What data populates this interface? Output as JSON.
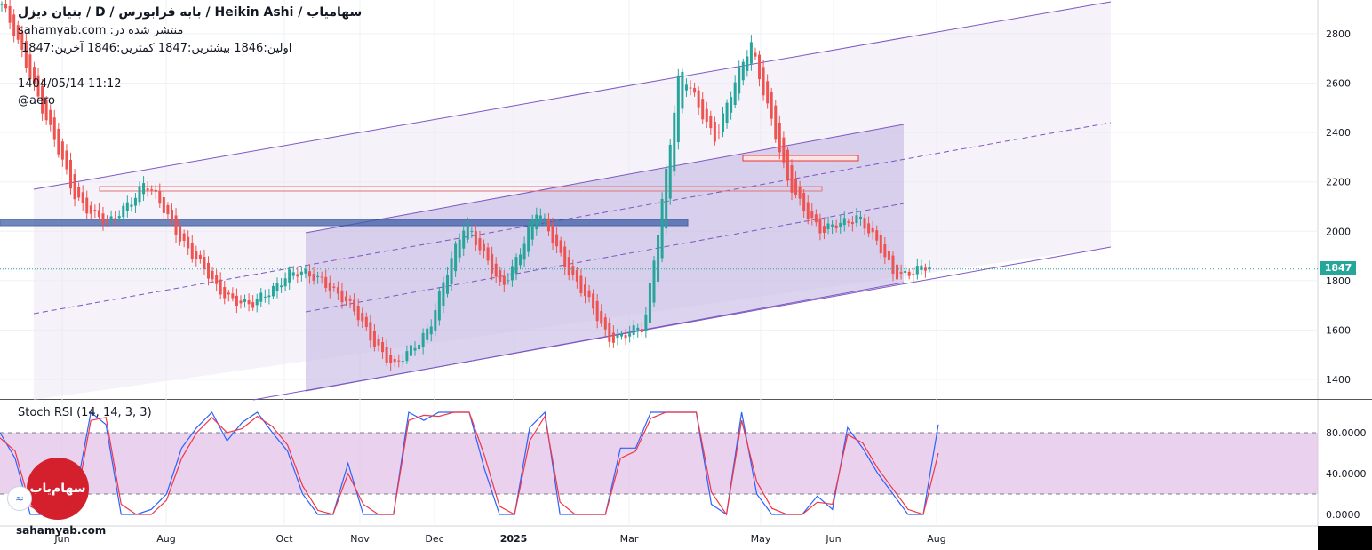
{
  "header": {
    "title": "بنیان دیزل  /  D  /  بابه فرابورس  /  Heikin Ashi / سهامیاب",
    "published": "sahamyab.com :منتشر شده در",
    "ohlc": "اولین:1846  بیشترین:1847  کمترین:1846  آخرین:1847",
    "timestamp": "1404/05/14 11:12",
    "user": "@aero"
  },
  "indicator": {
    "title": "Stoch RSI (14, 14, 3, 3)"
  },
  "brand": {
    "bottom_text": "sahamyab.com",
    "logo_text": "سهام‌یاب"
  },
  "colors": {
    "up": "#26a69a",
    "down": "#ef5350",
    "channel": "#7e57c2",
    "channel_fill_light": "#ede7f6",
    "channel_fill_dark": "#c5b8e3",
    "blue_zone": "#3f5fa8",
    "stoch_k": "#2962ff",
    "stoch_d": "#f23645",
    "stoch_band": "#e1bee7",
    "last_price": "#26a69a"
  },
  "chart_data": [
    {
      "type": "candlestick",
      "style": "Heikin Ashi",
      "y_axis": {
        "ticks": [
          1400,
          1600,
          1800,
          2000,
          2200,
          2400,
          2600,
          2800
        ],
        "ylim": [
          1330,
          2930
        ]
      },
      "x_axis": {
        "tick_labels": [
          "Jun",
          "Aug",
          "Oct",
          "Nov",
          "Dec",
          "2025",
          "Mar",
          "May",
          "Jun",
          "Aug"
        ]
      },
      "last_price": 1847,
      "last_price_label": "1847",
      "price_path": [
        [
          "Jun",
          2920
        ],
        [
          "Jun",
          2560
        ],
        [
          "Aug",
          2150
        ],
        [
          "Aug",
          2020
        ],
        [
          "Aug",
          2200
        ],
        [
          "Aug",
          1980
        ],
        [
          "Oct",
          1770
        ],
        [
          "Oct",
          1690
        ],
        [
          "Oct",
          1830
        ],
        [
          "Oct",
          1810
        ],
        [
          "Nov",
          1650
        ],
        [
          "Nov",
          1440
        ],
        [
          "Dec",
          1620
        ],
        [
          "Dec",
          2050
        ],
        [
          "Dec",
          1760
        ],
        [
          "2025",
          2080
        ],
        [
          "2025",
          1820
        ],
        [
          "Mar",
          1570
        ],
        [
          "Mar",
          1600
        ],
        [
          "Mar",
          2650
        ],
        [
          "May",
          2380
        ],
        [
          "May",
          2770
        ],
        [
          "Jun",
          2200
        ],
        [
          "Jun",
          1990
        ],
        [
          "Jun",
          2070
        ],
        [
          "Aug",
          1830
        ],
        [
          "Aug",
          1847
        ]
      ]
    },
    {
      "type": "line",
      "title": "Stoch RSI (14, 14, 3, 3)",
      "y_axis": {
        "ticks": [
          0,
          40,
          80
        ],
        "tick_labels": [
          "0.0000",
          "40.0000",
          "80.0000"
        ],
        "ylim": [
          -5,
          108
        ]
      },
      "band": [
        20,
        80
      ],
      "series": [
        {
          "color": "blue",
          "values": [
            80,
            55,
            0,
            0,
            0,
            20,
            100,
            88,
            0,
            0,
            5,
            20,
            65,
            85,
            100,
            72,
            90,
            100,
            80,
            62,
            20,
            0,
            0,
            50,
            0,
            0,
            0,
            100,
            92,
            100,
            100,
            100,
            45,
            0,
            0,
            85,
            100,
            0,
            0,
            0,
            0,
            65,
            65,
            100,
            100,
            100,
            100,
            10,
            0,
            100,
            20,
            0,
            0,
            0,
            18,
            5,
            85,
            65,
            40,
            20,
            0,
            0,
            88
          ]
        },
        {
          "color": "red",
          "values": [
            75,
            62,
            8,
            0,
            0,
            10,
            92,
            95,
            10,
            0,
            0,
            14,
            55,
            80,
            95,
            80,
            84,
            96,
            86,
            68,
            28,
            4,
            0,
            40,
            10,
            0,
            0,
            92,
            97,
            96,
            100,
            100,
            58,
            8,
            0,
            72,
            96,
            12,
            0,
            0,
            0,
            55,
            62,
            94,
            100,
            100,
            100,
            22,
            0,
            92,
            32,
            6,
            0,
            0,
            12,
            10,
            78,
            70,
            45,
            25,
            5,
            0,
            60
          ]
        }
      ]
    }
  ]
}
